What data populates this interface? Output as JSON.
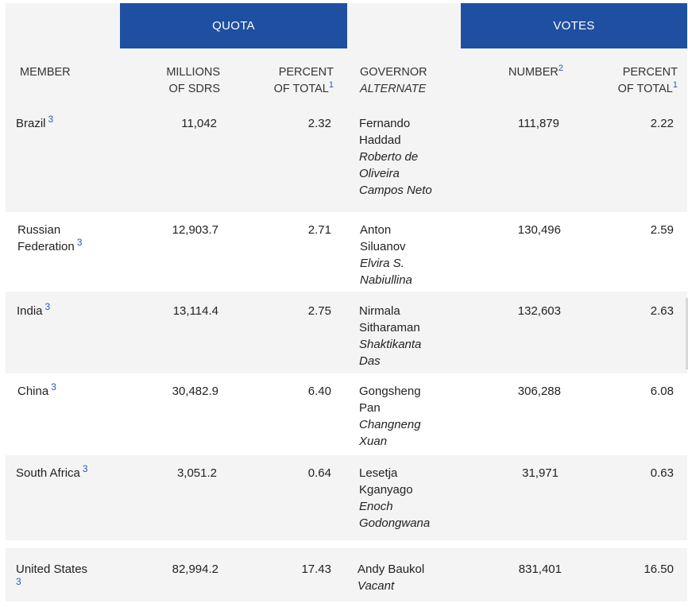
{
  "groups": {
    "quota": "QUOTA",
    "votes": "VOTES"
  },
  "headers": {
    "member": "MEMBER",
    "quota_millions_l1": "MILLIONS",
    "quota_millions_l2": "OF SDRS",
    "quota_percent_l1": "PERCENT",
    "quota_percent_l2": "OF TOTAL",
    "quota_percent_fn": "1",
    "governor": "GOVERNOR",
    "alternate": "ALTERNATE",
    "votes_number": "NUMBER",
    "votes_number_fn": "2",
    "votes_percent_l1": "PERCENT",
    "votes_percent_l2": "OF TOTAL",
    "votes_percent_fn": "1"
  },
  "rows": [
    {
      "member_lines": [
        "Brazil"
      ],
      "fn": "3",
      "sdrs": "11,042",
      "quota_pct": "2.32",
      "governor_lines": [
        "Fernando",
        "Haddad"
      ],
      "alternate_lines": [
        "Roberto de",
        "Oliveira",
        "Campos Neto"
      ],
      "votes": "111,879",
      "votes_pct": "2.22"
    },
    {
      "member_lines": [
        "Russian",
        "Federation"
      ],
      "fn": "3",
      "sdrs": "12,903.7",
      "quota_pct": "2.71",
      "governor_lines": [
        "Anton",
        "Siluanov"
      ],
      "alternate_lines": [
        "Elvira S.",
        "Nabiullina"
      ],
      "votes": "130,496",
      "votes_pct": "2.59"
    },
    {
      "member_lines": [
        "India"
      ],
      "fn": "3",
      "sdrs": "13,114.4",
      "quota_pct": "2.75",
      "governor_lines": [
        "Nirmala",
        "Sitharaman"
      ],
      "alternate_lines": [
        "Shaktikanta",
        "Das"
      ],
      "votes": "132,603",
      "votes_pct": "2.63"
    },
    {
      "member_lines": [
        "China"
      ],
      "fn": "3",
      "sdrs": "30,482.9",
      "quota_pct": "6.40",
      "governor_lines": [
        "Gongsheng",
        "Pan"
      ],
      "alternate_lines": [
        "Changneng",
        "Xuan"
      ],
      "votes": "306,288",
      "votes_pct": "6.08"
    },
    {
      "member_lines": [
        "South Africa"
      ],
      "fn": "3",
      "sdrs": "3,051.2",
      "quota_pct": "0.64",
      "governor_lines": [
        "Lesetja",
        "Kganyago"
      ],
      "alternate_lines": [
        "Enoch",
        "Godongwana"
      ],
      "votes": "31,971",
      "votes_pct": "0.63"
    },
    {
      "member_lines": [
        "United States"
      ],
      "fn": "3",
      "sdrs": "82,994.2",
      "quota_pct": "17.43",
      "governor_lines": [
        "Andy Baukol"
      ],
      "alternate_lines": [
        "Vacant"
      ],
      "votes": "831,401",
      "votes_pct": "16.50"
    }
  ],
  "colors": {
    "header_blue": "#1f4fa0",
    "row_gray": "#f4f4f5",
    "footnote_blue": "#2b5bb5"
  }
}
